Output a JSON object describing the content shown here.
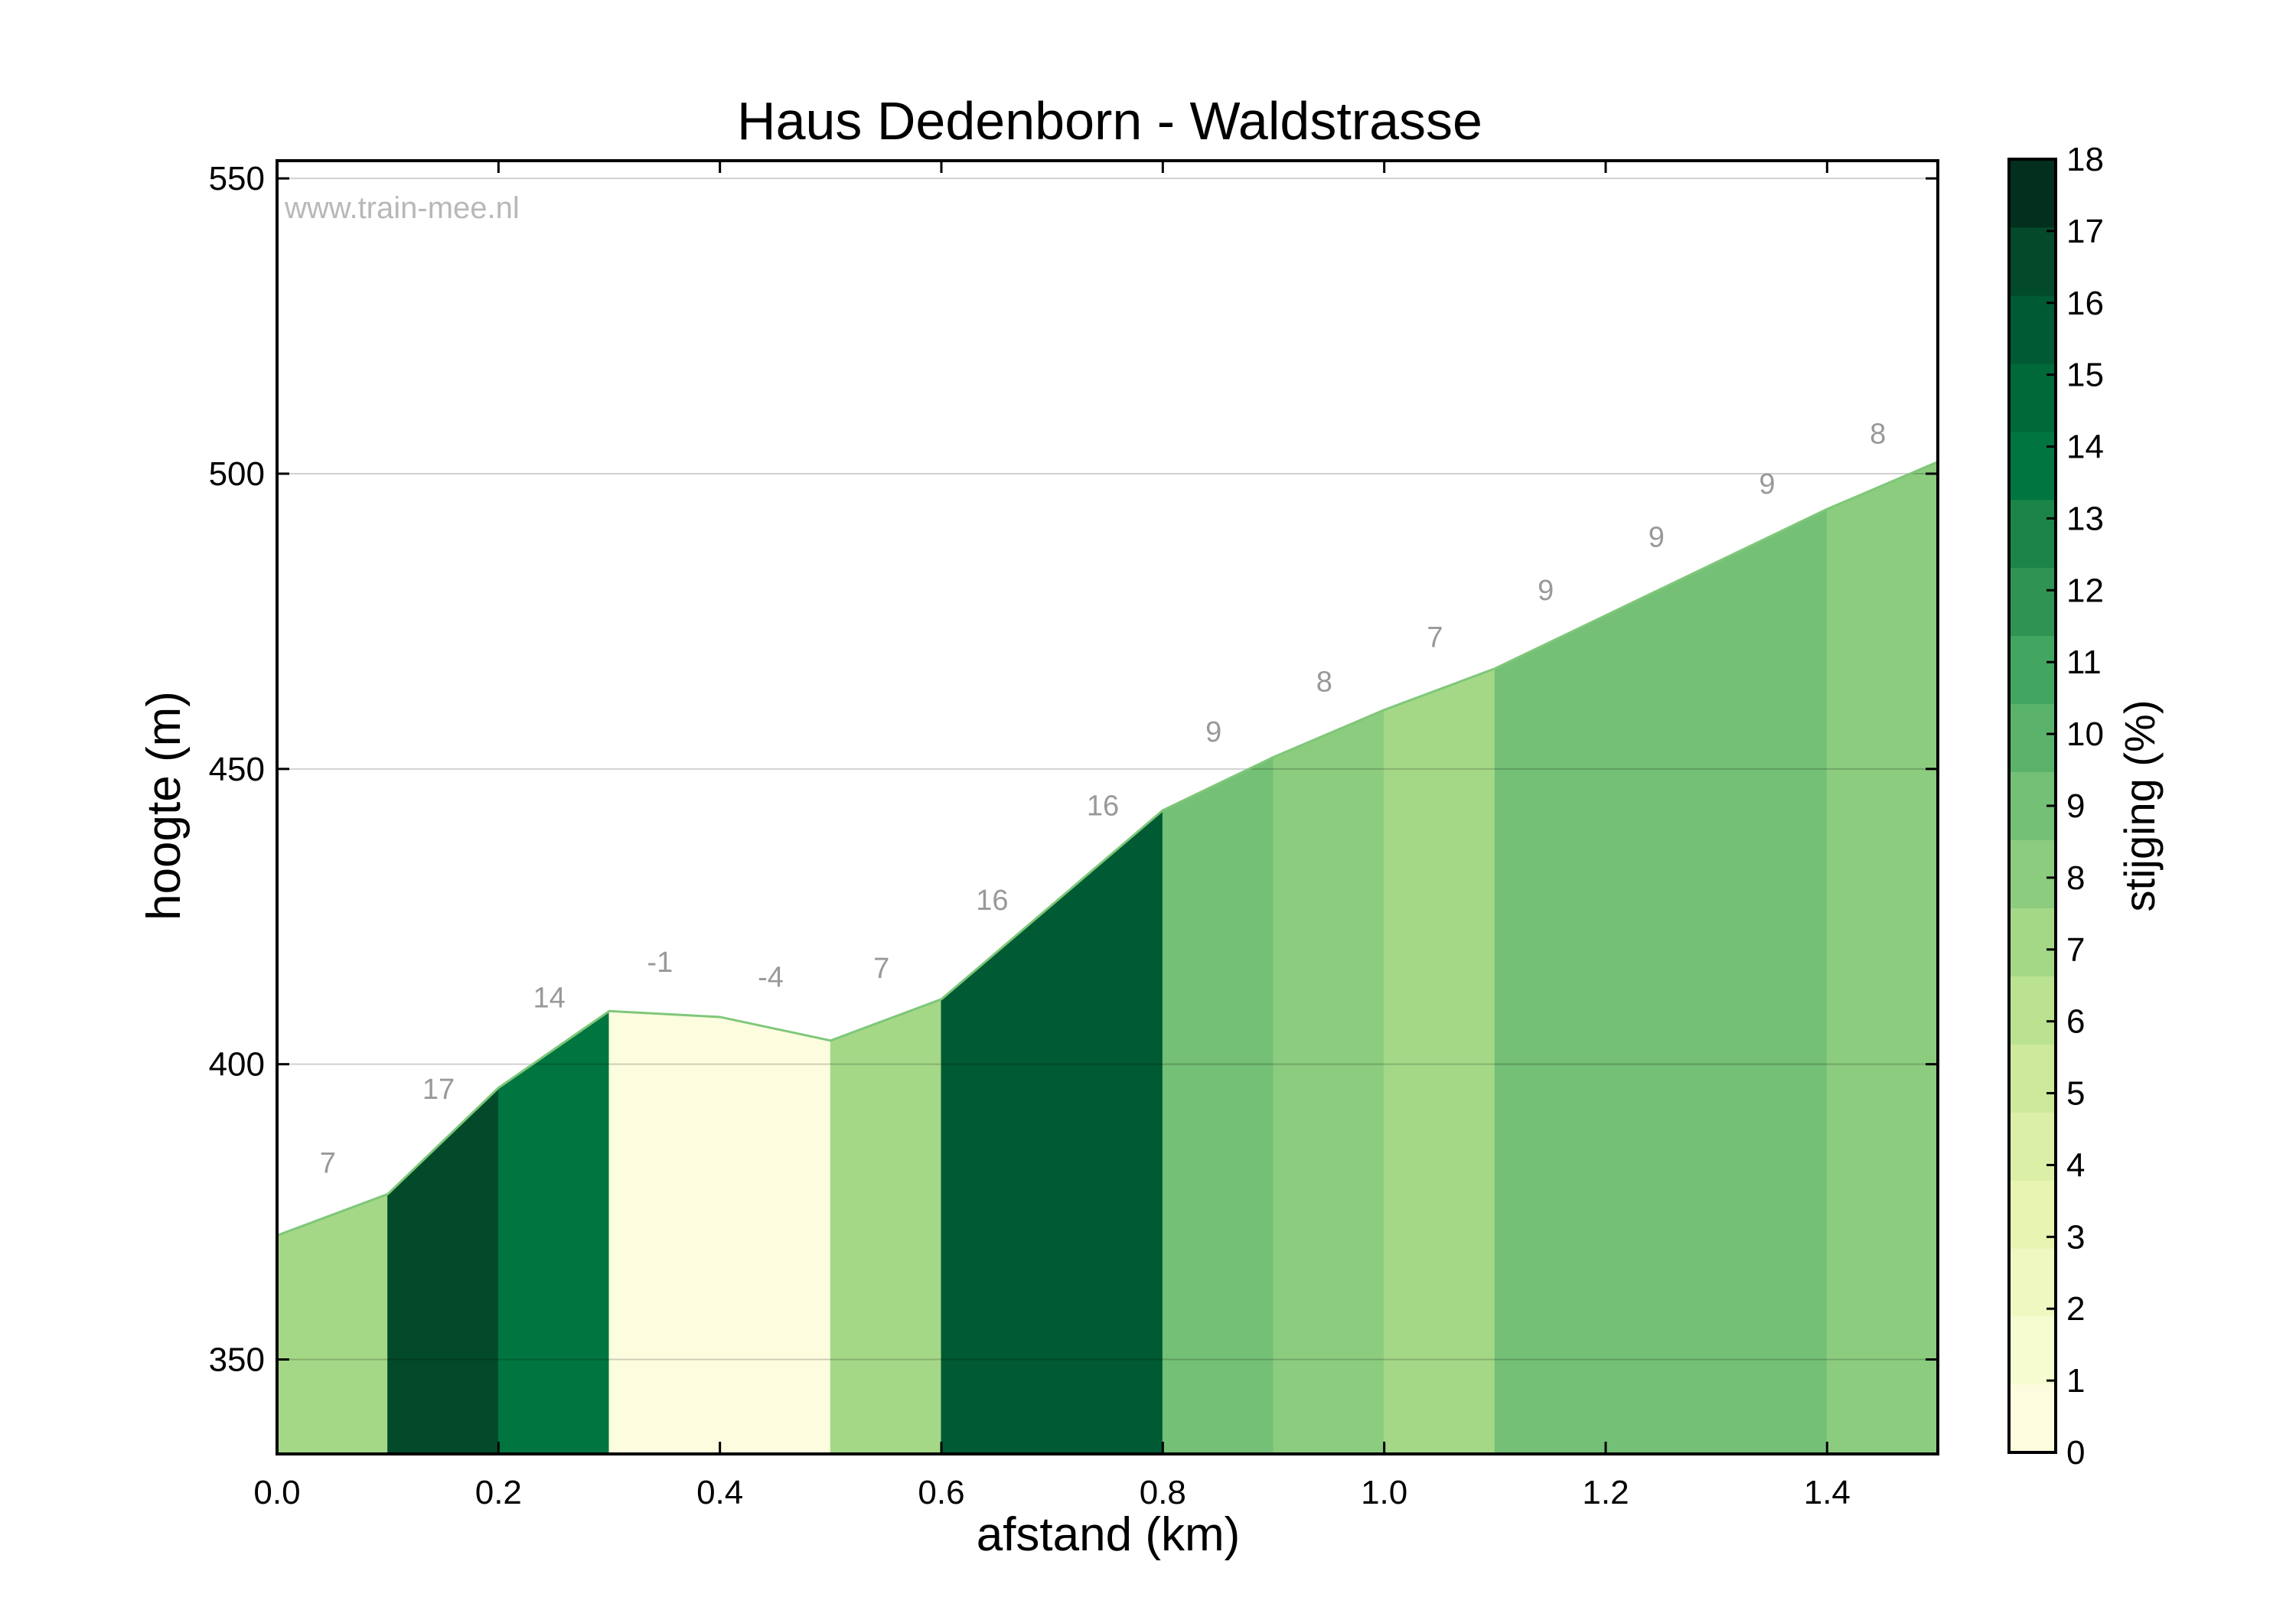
{
  "chart_data": {
    "type": "area",
    "title": "Haus Dedenborn - Waldstrasse",
    "xlabel": "afstand (km)",
    "ylabel": "hoogte (m)",
    "watermark": "www.train-mee.nl",
    "xlim": [
      0,
      1.5
    ],
    "ylim": [
      334,
      553
    ],
    "xticks": [
      "0.0",
      "0.2",
      "0.4",
      "0.6",
      "0.8",
      "1.0",
      "1.2",
      "1.4"
    ],
    "yticks": [
      "350",
      "400",
      "450",
      "500",
      "550"
    ],
    "grid": "horizontal",
    "points": [
      {
        "x": 0.0,
        "y": 371
      },
      {
        "x": 0.1,
        "y": 378
      },
      {
        "x": 0.2,
        "y": 396
      },
      {
        "x": 0.3,
        "y": 409
      },
      {
        "x": 0.4,
        "y": 408
      },
      {
        "x": 0.5,
        "y": 404
      },
      {
        "x": 0.6,
        "y": 411
      },
      {
        "x": 0.7,
        "y": 427
      },
      {
        "x": 0.8,
        "y": 443
      },
      {
        "x": 0.9,
        "y": 452
      },
      {
        "x": 1.0,
        "y": 460
      },
      {
        "x": 1.1,
        "y": 467
      },
      {
        "x": 1.2,
        "y": 476
      },
      {
        "x": 1.3,
        "y": 485
      },
      {
        "x": 1.4,
        "y": 494
      },
      {
        "x": 1.5,
        "y": 502
      }
    ],
    "gradients": [
      "7",
      "17",
      "14",
      "-1",
      "-4",
      "7",
      "16",
      "16",
      "9",
      "8",
      "7",
      "9",
      "9",
      "9",
      "8"
    ],
    "colorbar": {
      "label": "stijging (%)",
      "min": 0,
      "max": 18,
      "ticks": [
        "0",
        "1",
        "2",
        "3",
        "4",
        "5",
        "6",
        "7",
        "8",
        "9",
        "10",
        "11",
        "12",
        "13",
        "14",
        "15",
        "16",
        "17",
        "18"
      ],
      "colors": [
        "#fcfcdf",
        "#f7fbd0",
        "#f0f8c1",
        "#e7f4b2",
        "#dbefa6",
        "#cde99b",
        "#bbe291",
        "#a4d887",
        "#8ccc7f",
        "#73c076",
        "#5bb26b",
        "#43a660",
        "#2f9353",
        "#1b8548",
        "#007540",
        "#00693a",
        "#005a33",
        "#024a2a",
        "#022f1e"
      ]
    }
  }
}
